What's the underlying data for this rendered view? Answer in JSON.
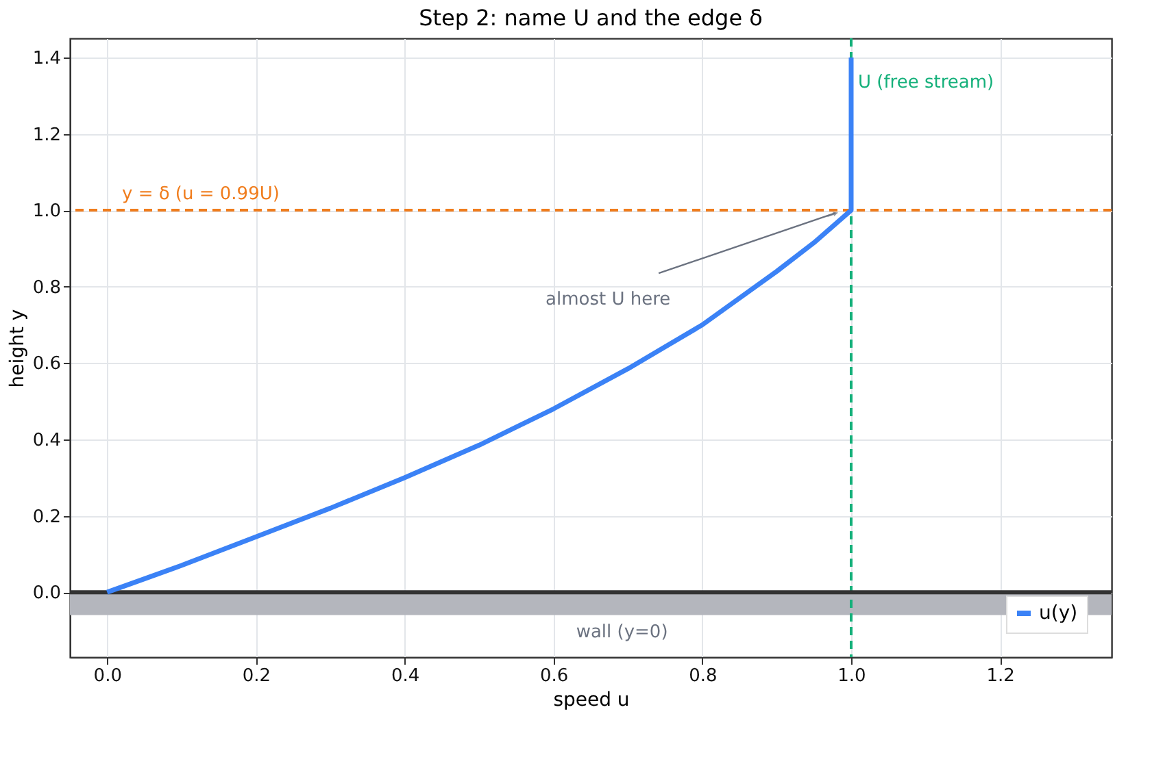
{
  "chart_data": {
    "type": "line",
    "title": "Step 2: name U and the edge δ",
    "xlabel": "speed  u",
    "ylabel": "height  y",
    "series": [
      {
        "name": "u(y)",
        "color": "#3b82f6",
        "x": [
          0,
          0.05,
          0.1,
          0.2,
          0.3,
          0.4,
          0.5,
          0.6,
          0.7,
          0.8,
          0.9,
          0.95,
          1.0,
          1.0
        ],
        "values": [
          0,
          0.035,
          0.07,
          0.145,
          0.22,
          0.3,
          0.385,
          0.48,
          0.585,
          0.7,
          0.84,
          0.915,
          1.0,
          1.4
        ]
      }
    ],
    "xlim": [
      -0.05,
      1.35
    ],
    "ylim": [
      -0.17,
      1.45
    ],
    "xticks": [
      {
        "value": 0,
        "label": "0.0"
      },
      0.2,
      0.4,
      0.6,
      0.8,
      {
        "value": 1,
        "label": "1.0"
      },
      1.2
    ],
    "yticks": [
      {
        "value": 0,
        "label": "0.0"
      },
      0.2,
      0.4,
      0.6,
      0.8,
      {
        "value": 1,
        "label": "1.0"
      },
      1.2,
      1.4
    ],
    "ref_lines": [
      {
        "axis": "y",
        "value": 1.0,
        "label": null,
        "color": "#f07c1c",
        "line_style": "dashed"
      },
      {
        "axis": "x",
        "value": 1.0,
        "label": "U (free stream)",
        "color": "#14b07a",
        "line_style": "dashed"
      },
      {
        "axis": "y",
        "value": 0.0,
        "label": null,
        "color": "#333333",
        "line_style": "solid"
      }
    ],
    "bands": [
      {
        "axis": "y",
        "from": -0.06,
        "to": 0.0,
        "label": "wall (y=0)",
        "color": "#b4b6bd"
      }
    ],
    "annotations": [
      {
        "text": "y = δ  (u = 0.99U)",
        "x": 0.02,
        "y": 1.0
      },
      {
        "text": "almost U here",
        "x": 0.99,
        "y": 1.0
      }
    ],
    "grid": true,
    "legend": "bottom right",
    "marker": "none",
    "line_style": "solid"
  }
}
